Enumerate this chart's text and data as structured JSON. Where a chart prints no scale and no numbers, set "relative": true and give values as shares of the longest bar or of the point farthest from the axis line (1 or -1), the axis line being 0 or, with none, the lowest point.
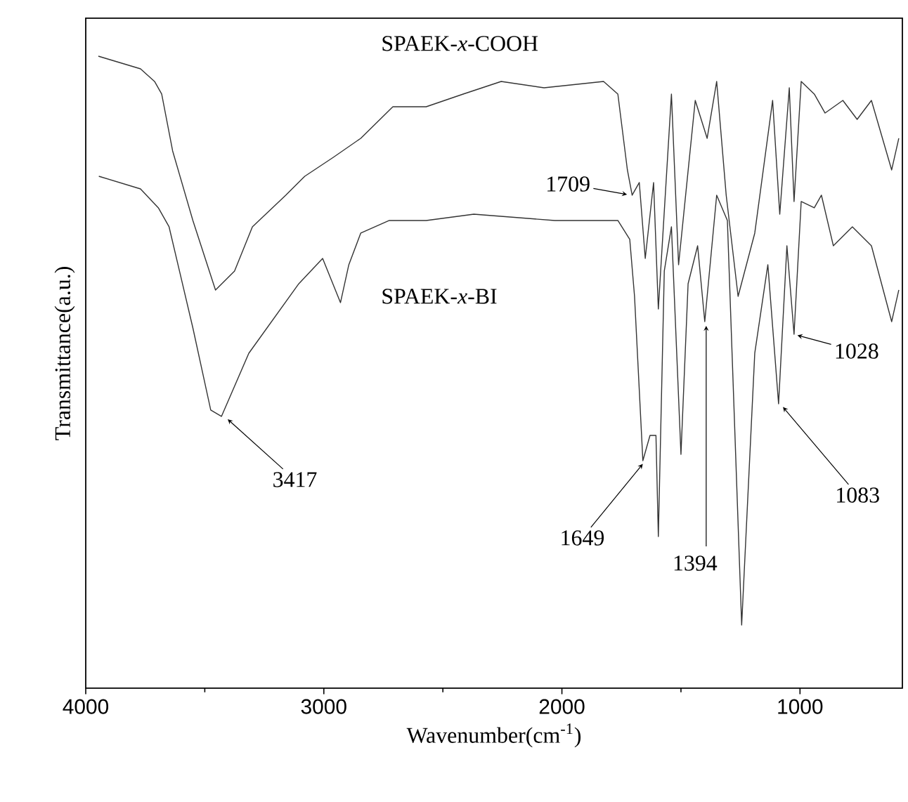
{
  "chart_data": {
    "type": "line",
    "relative": true,
    "xlabel": "Wavenumber(cm$^{-1}$)",
    "ylabel": "Transmittance(a.u.)",
    "xlim": [
      4000,
      570
    ],
    "xticks": [
      4000,
      3000,
      2000,
      1000
    ],
    "tick_labels": "x",
    "marker": "none",
    "line_style": "solid",
    "series": [
      {
        "name": "SPAEK-*x*-COOH",
        "color": "#333333",
        "x": [
          3947,
          3770,
          3711,
          3681,
          3635,
          3550,
          3455,
          3375,
          3300,
          3160,
          3080,
          2960,
          2845,
          2710,
          2570,
          2415,
          2255,
          2075,
          1825,
          1765,
          1725,
          1705,
          1675,
          1650,
          1615,
          1595,
          1540,
          1510,
          1440,
          1390,
          1350,
          1310,
          1260,
          1190,
          1115,
          1085,
          1045,
          1025,
          995,
          940,
          895,
          820,
          760,
          700,
          615,
          585
        ],
        "values": [
          1.0,
          0.98,
          0.96,
          0.94,
          0.85,
          0.74,
          0.63,
          0.66,
          0.73,
          0.78,
          0.81,
          0.84,
          0.87,
          0.92,
          0.92,
          0.94,
          0.96,
          0.95,
          0.96,
          0.94,
          0.82,
          0.78,
          0.8,
          0.68,
          0.8,
          0.6,
          0.94,
          0.67,
          0.93,
          0.87,
          0.96,
          0.78,
          0.62,
          0.72,
          0.93,
          0.75,
          0.95,
          0.77,
          0.96,
          0.94,
          0.91,
          0.93,
          0.9,
          0.93,
          0.82,
          0.87
        ]
      },
      {
        "name": "SPAEK-*x*-BI",
        "color": "#333333",
        "x": [
          3945,
          3770,
          3695,
          3650,
          3550,
          3475,
          3430,
          3315,
          3105,
          3005,
          2930,
          2895,
          2845,
          2725,
          2570,
          2370,
          2030,
          1765,
          1715,
          1695,
          1660,
          1630,
          1605,
          1595,
          1570,
          1540,
          1500,
          1470,
          1430,
          1400,
          1350,
          1305,
          1245,
          1190,
          1135,
          1090,
          1055,
          1025,
          995,
          940,
          910,
          860,
          780,
          700,
          615,
          585
        ],
        "values": [
          0.81,
          0.79,
          0.76,
          0.73,
          0.57,
          0.44,
          0.43,
          0.53,
          0.64,
          0.68,
          0.61,
          0.67,
          0.72,
          0.74,
          0.74,
          0.75,
          0.74,
          0.74,
          0.71,
          0.62,
          0.36,
          0.4,
          0.4,
          0.24,
          0.66,
          0.73,
          0.37,
          0.64,
          0.7,
          0.58,
          0.78,
          0.74,
          0.1,
          0.53,
          0.67,
          0.45,
          0.7,
          0.56,
          0.77,
          0.76,
          0.78,
          0.7,
          0.73,
          0.7,
          0.58,
          0.63
        ]
      }
    ],
    "annotations": [
      {
        "text": "3417",
        "x": 3417,
        "y": 0.43
      },
      {
        "text": "1709",
        "x": 1709,
        "y": 0.78
      },
      {
        "text": "1649",
        "x": 1649,
        "y": 0.36
      },
      {
        "text": "1394",
        "x": 1394,
        "y": 0.58
      },
      {
        "text": "1083",
        "x": 1083,
        "y": 0.45
      },
      {
        "text": "1028",
        "x": 1028,
        "y": 0.56
      }
    ]
  }
}
